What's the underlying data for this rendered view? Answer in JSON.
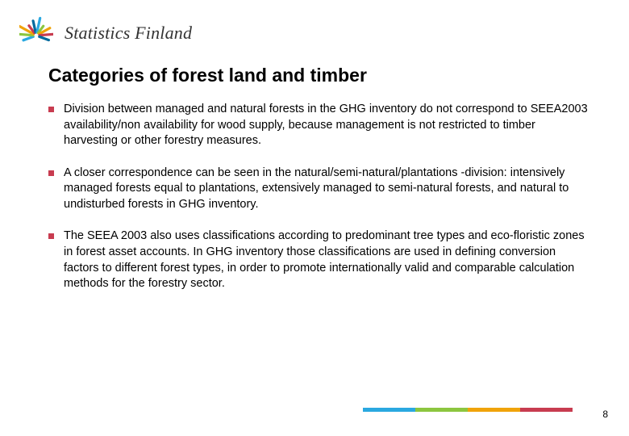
{
  "logo": {
    "text": "Statistics Finland",
    "bar_colors": [
      "#2aa8e0",
      "#8cc63f",
      "#f0a30a",
      "#c83c50",
      "#006a9e",
      "#2aa8e0",
      "#8cc63f",
      "#f0a30a",
      "#c83c50",
      "#006a9e"
    ],
    "text_color": "#333333"
  },
  "title": {
    "text": "Categories of forest land and timber",
    "font_size": 23,
    "font_weight": "bold",
    "color": "#000000"
  },
  "bullets": {
    "marker_color": "#c83c50",
    "marker_size": 7,
    "text_font_size": 14.5,
    "text_color": "#000000",
    "items": [
      "Division between managed and natural forests in the GHG inventory do not correspond to SEEA2003 availability/non availability for wood supply, because management is not restricted to timber harvesting or other forestry measures.",
      "A closer correspondence can be seen in the natural/semi-natural/plantations -division: intensively managed forests equal to plantations, extensively managed to semi-natural forests, and natural to undisturbed forests in GHG inventory.",
      "The SEEA 2003 also uses classifications according to predominant tree types and eco-floristic zones in forest asset accounts. In GHG inventory those classifications  are used in defining conversion factors to different forest types, in order to promote internationally valid and comparable calculation methods for the forestry sector."
    ]
  },
  "footer": {
    "bar_colors": [
      "#2aa8e0",
      "#8cc63f",
      "#f0a30a",
      "#c83c50"
    ],
    "page_number": "8",
    "page_number_font_size": 12
  },
  "background_color": "#ffffff"
}
